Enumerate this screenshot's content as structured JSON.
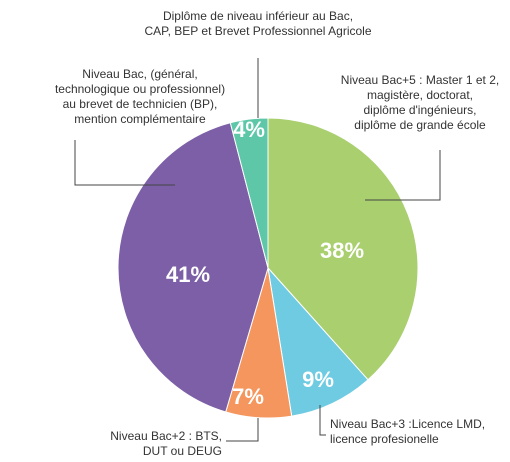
{
  "chart_data": {
    "type": "pie",
    "categories": [
      [
        "Niveau Bac+5 : Master 1 et 2,",
        "magistère, doctorat,",
        "diplôme d'ingénieurs,",
        "diplôme de grande école"
      ],
      [
        "Niveau Bac+3 :Licence LMD,",
        "licence profesionelle"
      ],
      [
        "Niveau Bac+2 : BTS,",
        "DUT ou DEUG"
      ],
      [
        "Niveau Bac, (général,",
        "technologique ou professionnel)",
        "au brevet de technicien (BP),",
        "mention complémentaire"
      ],
      [
        "Diplôme de niveau inférieur au Bac,",
        "CAP, BEP et Brevet Professionnel Agricole"
      ]
    ],
    "values": [
      38,
      9,
      7,
      41,
      4
    ],
    "value_labels": [
      "38%",
      "9%",
      "7%",
      "41%",
      "4%"
    ],
    "colors": [
      "#a9cf6f",
      "#6fcbe2",
      "#f4965d",
      "#7c5fa6",
      "#5ec7a8"
    ]
  }
}
